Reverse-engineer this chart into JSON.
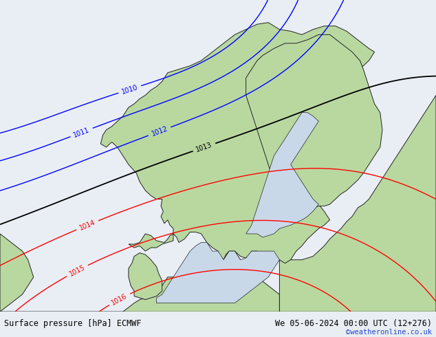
{
  "title_left": "Surface pressure [hPa] ECMWF",
  "title_right": "We 05-06-2024 00:00 UTC (12+276)",
  "title_right2": "©weatheronline.co.uk",
  "ocean_color": "#e8eef4",
  "land_color": "#b8d8a0",
  "inland_sea_color": "#c8d8e8",
  "gray_land_color": "#c8ccc8",
  "bottom_bar_color": "#b8c4cc",
  "text_color_left": "#000000",
  "text_color_right": "#000000",
  "text_color_url": "#2244cc",
  "label_fontsize": 7,
  "contour_black_levels": [
    1013
  ],
  "contour_blue_levels": [
    1010,
    1011,
    1012
  ],
  "contour_red_levels": [
    1014,
    1015,
    1016
  ],
  "lon_min": -4,
  "lon_max": 35,
  "lat_min": 54,
  "lat_max": 72
}
